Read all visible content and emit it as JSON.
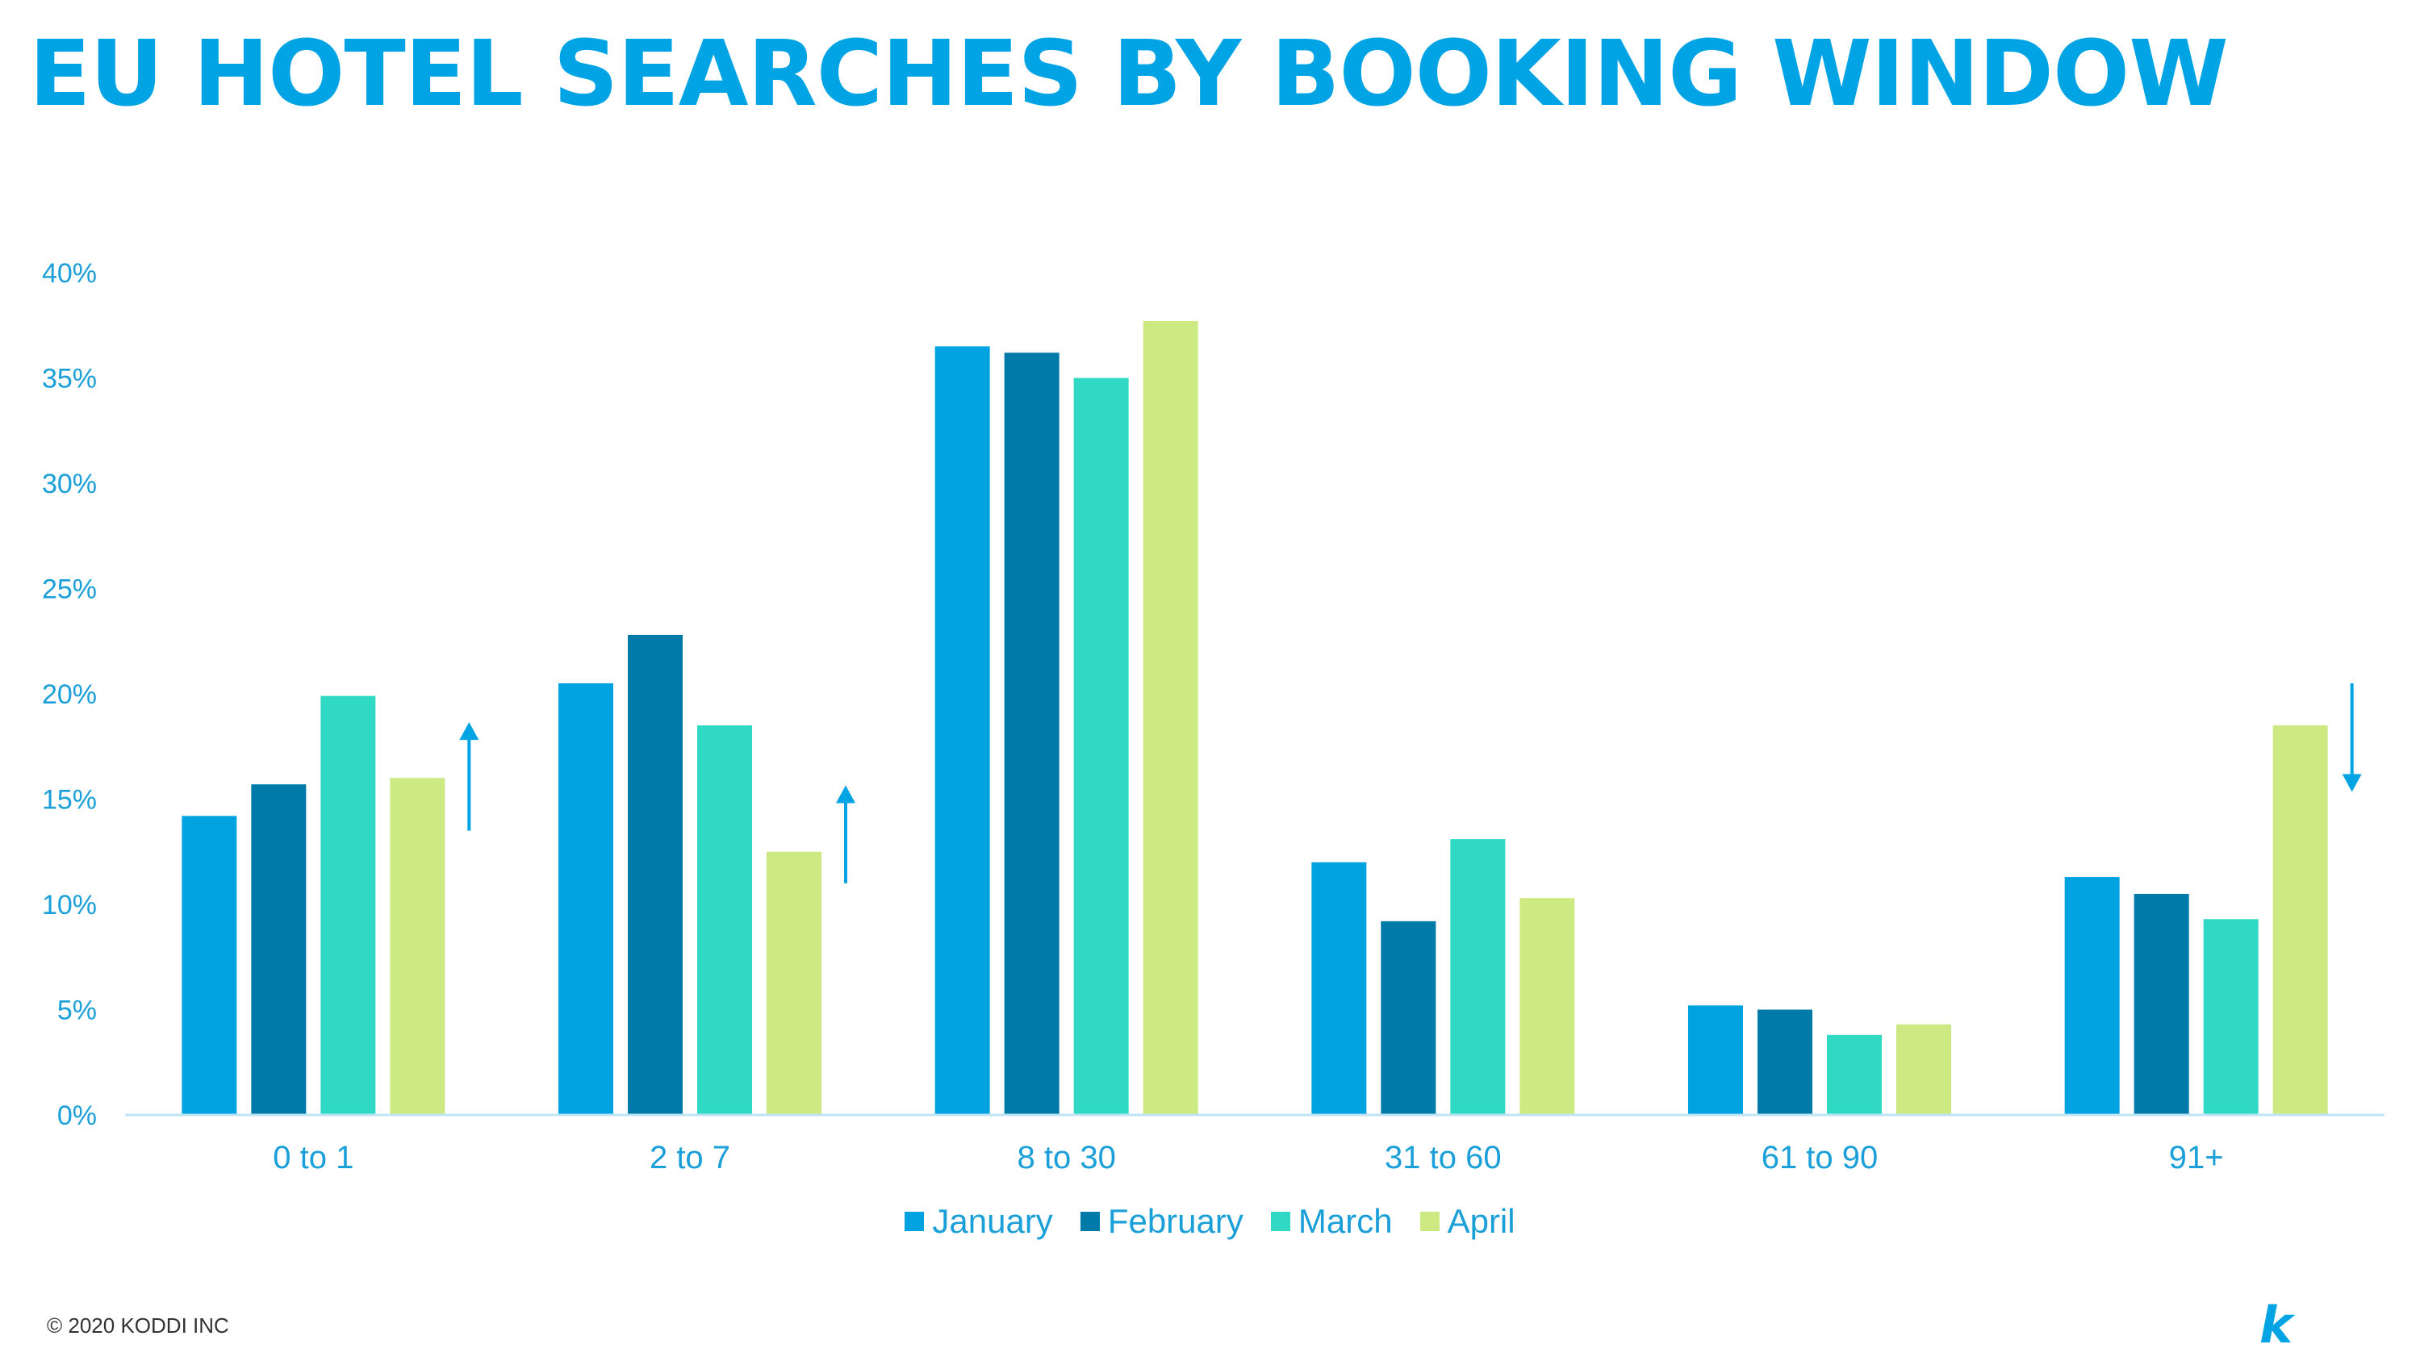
{
  "title": "EU HOTEL SEARCHES BY BOOKING WINDOW",
  "footer": "© 2020 KODDI INC",
  "logo": "k",
  "chart_data": {
    "type": "bar",
    "categories": [
      "0 to 1",
      "2 to 7",
      "8 to 30",
      "31 to 60",
      "61 to 90",
      "91+"
    ],
    "series": [
      {
        "name": "January",
        "color": "#00a3e0",
        "values": [
          14.2,
          20.5,
          36.5,
          12.0,
          5.2,
          11.3
        ]
      },
      {
        "name": "February",
        "color": "#007aa8",
        "values": [
          15.7,
          22.8,
          36.2,
          9.2,
          5.0,
          10.5
        ]
      },
      {
        "name": "March",
        "color": "#30d9c4",
        "values": [
          19.9,
          18.5,
          35.0,
          13.1,
          3.8,
          9.3
        ]
      },
      {
        "name": "April",
        "color": "#cde982",
        "values": [
          16.0,
          12.5,
          37.7,
          10.3,
          4.3,
          18.5
        ]
      }
    ],
    "ylim": [
      0,
      40
    ],
    "yticks": [
      "0%",
      "5%",
      "10%",
      "15%",
      "20%",
      "25%",
      "30%",
      "35%",
      "40%"
    ],
    "xlabel": "",
    "ylabel": "",
    "grid": false,
    "legend_position": "bottom-center",
    "annotations": [
      {
        "type": "arrow-up",
        "category": "0 to 1",
        "from": 13.5,
        "to": 18.5
      },
      {
        "type": "arrow-up",
        "category": "2 to 7",
        "from": 11.0,
        "to": 15.5
      },
      {
        "type": "arrow-down",
        "category": "91+",
        "from": 20.5,
        "to": 15.5
      }
    ],
    "accent_color": "#00a4e4"
  }
}
